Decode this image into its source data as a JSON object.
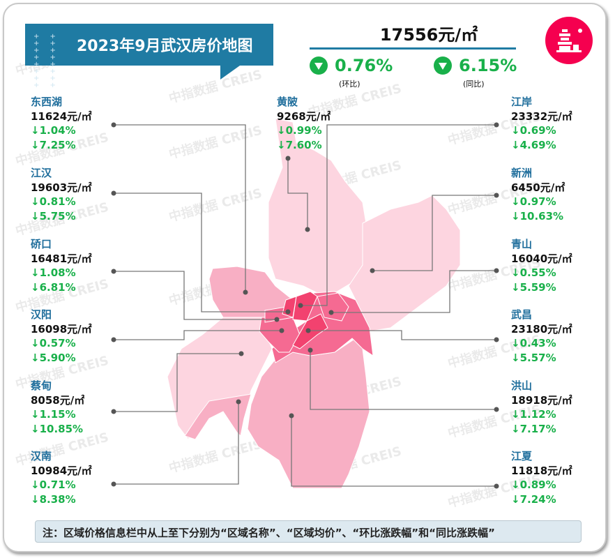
{
  "header": {
    "title": "2023年9月武汉房价地图",
    "decor": "+ + + + + + + + + + + + + + + +"
  },
  "summary": {
    "avg_price": "17556元/㎡",
    "mom": "0.76%",
    "mom_label": "(环比)",
    "yoy": "6.15%",
    "yoy_label": "(同比)",
    "trend": "down"
  },
  "logo": "Yellow Crane Tower logo",
  "watermark": "中指数据 CREIS",
  "colors": {
    "accent": "#1f7ba3",
    "down": "#19b04a",
    "name": "#1f6e9c",
    "map_light": "#fdd5e0",
    "map_mid": "#f8afc4",
    "map_dark": "#f56a92",
    "map_core": "#f2426f",
    "logo": "#f5004f"
  },
  "districts": [
    {
      "name": "东西湖",
      "price": "11624元/㎡",
      "mom": "↓1.04%",
      "yoy": "↓7.25%"
    },
    {
      "name": "江汉",
      "price": "19603元/㎡",
      "mom": "↓0.81%",
      "yoy": "↓5.75%"
    },
    {
      "name": "硚口",
      "price": "16481元/㎡",
      "mom": "↓1.08%",
      "yoy": "↓6.81%"
    },
    {
      "name": "汉阳",
      "price": "16098元/㎡",
      "mom": "↓0.57%",
      "yoy": "↓5.90%"
    },
    {
      "name": "蔡甸",
      "price": "8058元/㎡",
      "mom": "↓1.15%",
      "yoy": "↓10.85%"
    },
    {
      "name": "汉南",
      "price": "10984元/㎡",
      "mom": "↓0.71%",
      "yoy": "↓8.38%"
    },
    {
      "name": "黄陂",
      "price": "9268元/㎡",
      "mom": "↓0.99%",
      "yoy": "↓7.60%"
    },
    {
      "name": "江岸",
      "price": "23332元/㎡",
      "mom": "↓0.69%",
      "yoy": "↓4.69%"
    },
    {
      "name": "新洲",
      "price": "6450元/㎡",
      "mom": "↓0.97%",
      "yoy": "↓10.63%"
    },
    {
      "name": "青山",
      "price": "16040元/㎡",
      "mom": "↓0.55%",
      "yoy": "↓5.59%"
    },
    {
      "name": "武昌",
      "price": "23180元/㎡",
      "mom": "↓0.43%",
      "yoy": "↓5.57%"
    },
    {
      "name": "洪山",
      "price": "18918元/㎡",
      "mom": "↓1.12%",
      "yoy": "↓7.17%"
    },
    {
      "name": "江夏",
      "price": "11818元/㎡",
      "mom": "↓0.89%",
      "yoy": "↓7.24%"
    }
  ],
  "note": "注：区域价格信息栏中从上至下分别为“区域名称”、“区域均价”、“环比涨跌幅”和“同比涨跌幅”"
}
